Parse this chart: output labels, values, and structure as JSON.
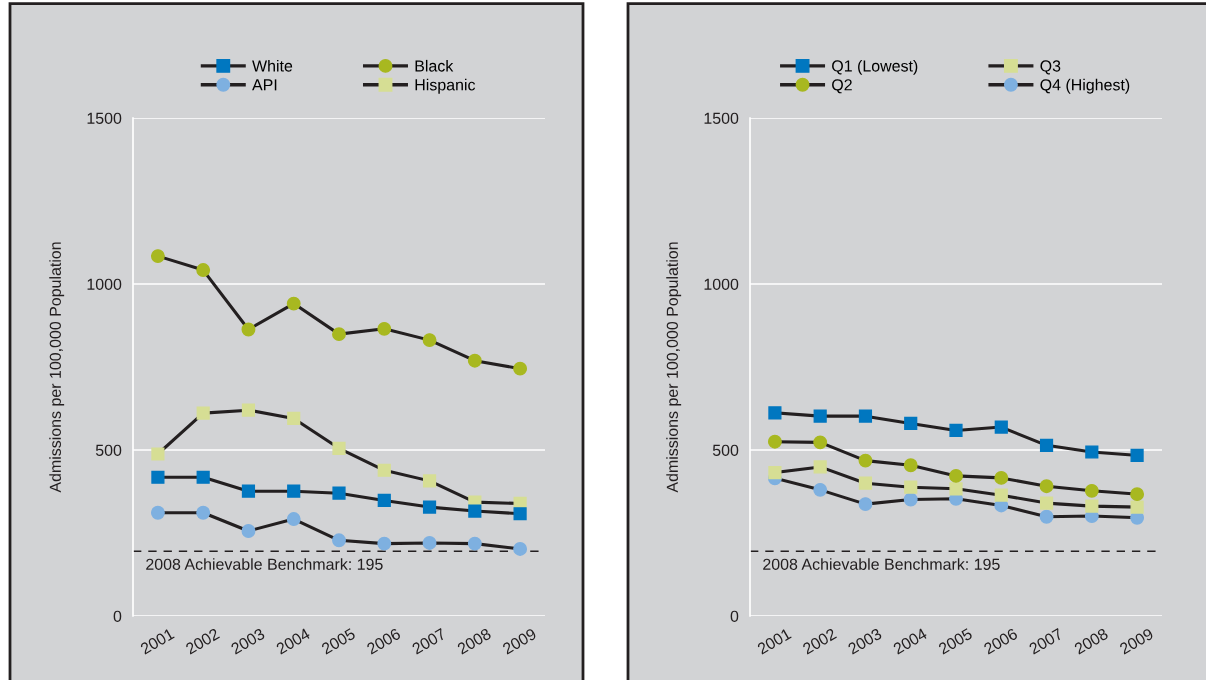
{
  "chart_data": [
    {
      "type": "line",
      "ylabel": "Admissions per 100,000 Population",
      "categories": [
        "2001",
        "2002",
        "2003",
        "2004",
        "2005",
        "2006",
        "2007",
        "2008",
        "2009"
      ],
      "ylim": [
        0,
        1500
      ],
      "yticks": [
        0,
        500,
        1000,
        1500
      ],
      "grid": "y",
      "legend": "top",
      "line_style": "solid",
      "series": [
        {
          "name": "White",
          "color": "#0077c0",
          "marker": "square",
          "values": [
            418,
            418,
            376,
            376,
            370,
            348,
            328,
            316,
            308
          ]
        },
        {
          "name": "API",
          "color": "#7eb0e0",
          "marker": "circle",
          "values": [
            311,
            311,
            256,
            292,
            228,
            218,
            220,
            218,
            202
          ]
        },
        {
          "name": "Black",
          "color": "#a8b820",
          "marker": "circle",
          "values": [
            1084,
            1042,
            863,
            941,
            849,
            865,
            831,
            769,
            745
          ]
        },
        {
          "name": "Hispanic",
          "color": "#d6de94",
          "marker": "square",
          "values": [
            488,
            611,
            620,
            595,
            505,
            439,
            407,
            343,
            339
          ]
        }
      ],
      "ref_lines": [
        {
          "axis": "y",
          "value": 195,
          "label": "2008 Achievable Benchmark: 195",
          "color": "#231f20",
          "line_style": "dashed"
        }
      ]
    },
    {
      "type": "line",
      "ylabel": "Admissions per 100,000 Population",
      "categories": [
        "2001",
        "2002",
        "2003",
        "2004",
        "2005",
        "2006",
        "2007",
        "2008",
        "2009"
      ],
      "ylim": [
        0,
        1500
      ],
      "yticks": [
        0,
        500,
        1000,
        1500
      ],
      "grid": "y",
      "legend": "top",
      "line_style": "solid",
      "series": [
        {
          "name": "Q1 (Lowest)",
          "color": "#0077c0",
          "marker": "square",
          "values": [
            612,
            602,
            602,
            580,
            559,
            569,
            514,
            494,
            484
          ]
        },
        {
          "name": "Q2",
          "color": "#a8b820",
          "marker": "circle",
          "values": [
            525,
            523,
            468,
            454,
            422,
            416,
            391,
            377,
            367
          ]
        },
        {
          "name": "Q3",
          "color": "#d6de94",
          "marker": "square",
          "values": [
            432,
            449,
            400,
            388,
            383,
            364,
            340,
            331,
            328
          ]
        },
        {
          "name": "Q4 (Highest)",
          "color": "#7eb0e0",
          "marker": "circle",
          "values": [
            415,
            380,
            337,
            351,
            353,
            333,
            299,
            301,
            296
          ]
        }
      ],
      "ref_lines": [
        {
          "axis": "y",
          "value": 195,
          "label": "2008 Achievable Benchmark: 195",
          "color": "#231f20",
          "line_style": "dashed"
        }
      ]
    }
  ]
}
